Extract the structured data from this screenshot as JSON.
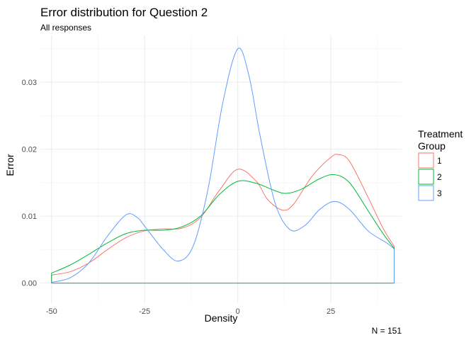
{
  "chart_data": {
    "type": "area",
    "title": "Error distribution for Question 2",
    "subtitle": "All responses",
    "xlabel": "Density",
    "ylabel": "Error",
    "caption": "N = 151",
    "xlim": [
      -53,
      44
    ],
    "ylim": [
      -0.003,
      0.037
    ],
    "x_ticks": [
      -50,
      -25,
      0,
      25
    ],
    "x_tick_labels": [
      "-50",
      "-25",
      "0",
      "25"
    ],
    "y_ticks": [
      0,
      0.01,
      0.02,
      0.03
    ],
    "y_tick_labels": [
      "0.00",
      "0.01",
      "0.02",
      "0.03"
    ],
    "x_minor_ticks": [
      -37.5,
      -12.5,
      12.5,
      37.5
    ],
    "y_minor_ticks": [
      0.005,
      0.015,
      0.025,
      0.035
    ],
    "grid": true,
    "legend": {
      "title_lines": [
        "Treatment",
        "Group"
      ],
      "position": "right"
    },
    "series": [
      {
        "name": "1",
        "color": "#f8766d",
        "points": [
          [
            -50,
            0.0012
          ],
          [
            -45,
            0.0017
          ],
          [
            -40,
            0.003
          ],
          [
            -35,
            0.005
          ],
          [
            -30,
            0.0068
          ],
          [
            -25,
            0.0078
          ],
          [
            -20,
            0.0081
          ],
          [
            -15,
            0.0082
          ],
          [
            -10,
            0.0098
          ],
          [
            -5,
            0.0138
          ],
          [
            0,
            0.017
          ],
          [
            5,
            0.0152
          ],
          [
            8,
            0.0125
          ],
          [
            12,
            0.0109
          ],
          [
            15,
            0.0118
          ],
          [
            20,
            0.016
          ],
          [
            25,
            0.0188
          ],
          [
            27,
            0.0192
          ],
          [
            30,
            0.0182
          ],
          [
            35,
            0.0128
          ],
          [
            39,
            0.0082
          ],
          [
            42,
            0.0055
          ]
        ]
      },
      {
        "name": "2",
        "color": "#00ba38",
        "points": [
          [
            -50,
            0.0015
          ],
          [
            -45,
            0.0027
          ],
          [
            -40,
            0.0043
          ],
          [
            -35,
            0.006
          ],
          [
            -30,
            0.0074
          ],
          [
            -25,
            0.0079
          ],
          [
            -20,
            0.0079
          ],
          [
            -15,
            0.0084
          ],
          [
            -10,
            0.01
          ],
          [
            -5,
            0.0132
          ],
          [
            0,
            0.0152
          ],
          [
            5,
            0.0149
          ],
          [
            10,
            0.0138
          ],
          [
            13,
            0.0134
          ],
          [
            17,
            0.014
          ],
          [
            22,
            0.0156
          ],
          [
            26,
            0.0162
          ],
          [
            30,
            0.015
          ],
          [
            35,
            0.0108
          ],
          [
            39,
            0.0074
          ],
          [
            42,
            0.0052
          ]
        ]
      },
      {
        "name": "3",
        "color": "#619cff",
        "points": [
          [
            -50,
            0.0001
          ],
          [
            -45,
            0.0008
          ],
          [
            -40,
            0.003
          ],
          [
            -35,
            0.007
          ],
          [
            -30,
            0.0102
          ],
          [
            -27,
            0.0098
          ],
          [
            -25,
            0.0085
          ],
          [
            -20,
            0.005
          ],
          [
            -16,
            0.0033
          ],
          [
            -12,
            0.0055
          ],
          [
            -8,
            0.014
          ],
          [
            -4,
            0.027
          ],
          [
            0,
            0.035
          ],
          [
            3,
            0.031
          ],
          [
            6,
            0.022
          ],
          [
            10,
            0.012
          ],
          [
            14,
            0.008
          ],
          [
            18,
            0.0086
          ],
          [
            22,
            0.011
          ],
          [
            26,
            0.0122
          ],
          [
            30,
            0.011
          ],
          [
            35,
            0.0078
          ],
          [
            40,
            0.006
          ],
          [
            42,
            0.0051
          ]
        ]
      }
    ]
  }
}
